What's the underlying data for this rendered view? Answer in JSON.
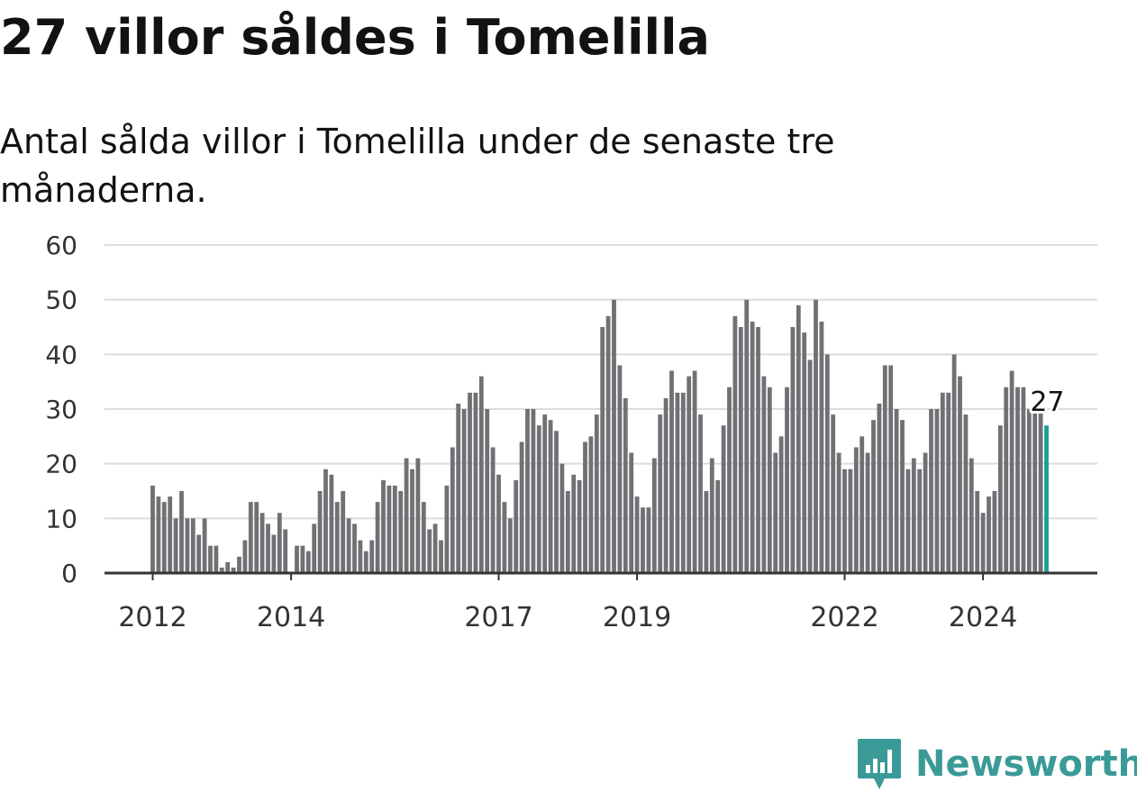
{
  "header": {
    "title": "27 villor såldes i Tomelilla",
    "subtitle": "Antal sålda villor i Tomelilla under de senaste tre månaderna."
  },
  "brand": {
    "name": "Newsworthy",
    "icon": "bar-chart-logo-icon",
    "color": "#3a9a97"
  },
  "colors": {
    "bar": "#707075",
    "highlight": "#1a9e94",
    "grid": "#dcdcdc",
    "axis": "#333333"
  },
  "chart_data": {
    "type": "bar",
    "title": "27 villor såldes i Tomelilla",
    "subtitle": "Antal sålda villor i Tomelilla under de senaste tre månaderna.",
    "start": "2012-01",
    "interval": "month",
    "x_tick_labels": [
      "2012",
      "2014",
      "2017",
      "2019",
      "2022",
      "2024"
    ],
    "y_ticks": [
      0,
      10,
      20,
      30,
      40,
      50,
      60
    ],
    "ylim": [
      0,
      60
    ],
    "grid": true,
    "highlight_last": true,
    "last_label": "27",
    "values": [
      16,
      14,
      13,
      14,
      10,
      15,
      10,
      10,
      7,
      10,
      5,
      5,
      1,
      2,
      1,
      3,
      6,
      13,
      13,
      11,
      9,
      7,
      11,
      8,
      0,
      5,
      5,
      4,
      9,
      15,
      19,
      18,
      13,
      15,
      10,
      9,
      6,
      4,
      6,
      13,
      17,
      16,
      16,
      15,
      21,
      19,
      21,
      13,
      8,
      9,
      6,
      16,
      23,
      31,
      30,
      33,
      33,
      36,
      30,
      23,
      18,
      13,
      10,
      17,
      24,
      30,
      30,
      27,
      29,
      28,
      26,
      20,
      15,
      18,
      17,
      24,
      25,
      29,
      45,
      47,
      50,
      38,
      32,
      22,
      14,
      12,
      12,
      21,
      29,
      32,
      37,
      33,
      33,
      36,
      37,
      29,
      15,
      21,
      17,
      27,
      34,
      47,
      45,
      50,
      46,
      45,
      36,
      34,
      22,
      25,
      34,
      45,
      49,
      44,
      39,
      50,
      46,
      40,
      29,
      22,
      19,
      19,
      23,
      25,
      22,
      28,
      31,
      38,
      38,
      30,
      28,
      19,
      21,
      19,
      22,
      30,
      30,
      33,
      33,
      40,
      36,
      29,
      21,
      15,
      11,
      14,
      15,
      27,
      34,
      37,
      34,
      34,
      30,
      30,
      30,
      27
    ]
  }
}
